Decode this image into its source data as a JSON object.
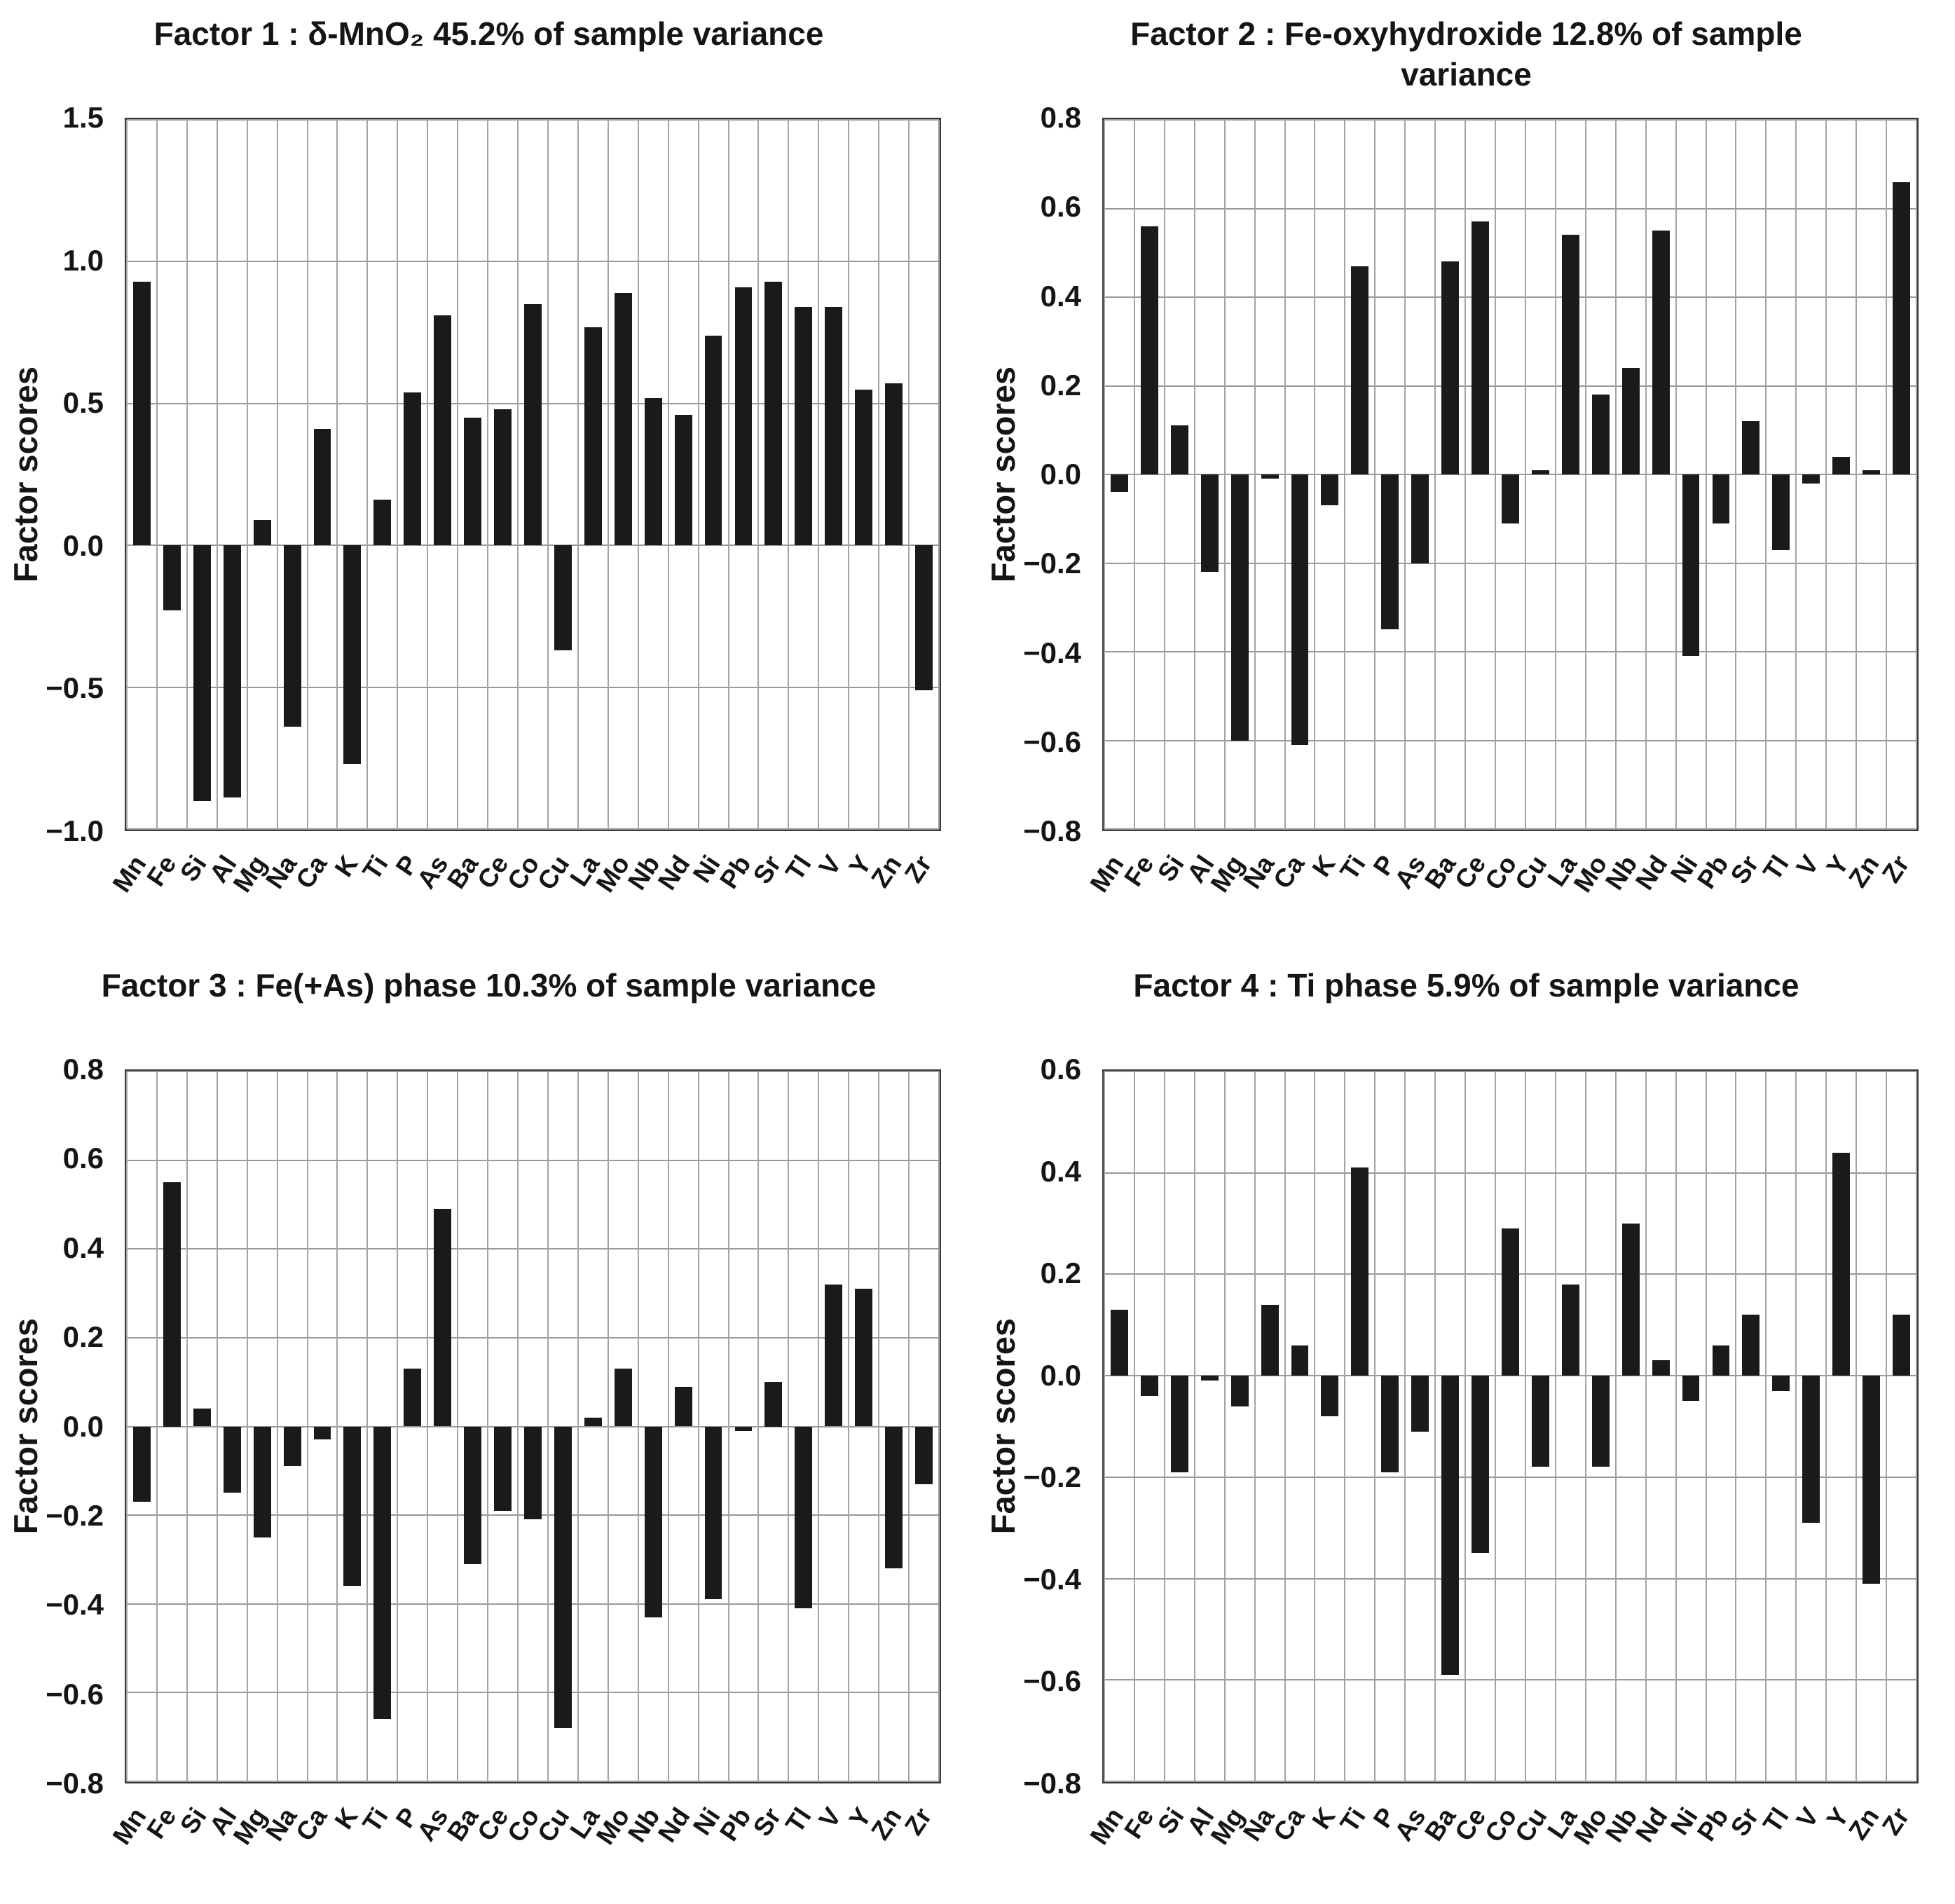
{
  "chart_data": [
    {
      "type": "bar",
      "title": "Factor 1 : δ-MnO₂ 45.2% of sample variance",
      "ylabel": "Factor scores",
      "xlabel": "",
      "legend": "none",
      "grid": true,
      "bar_color": "#1a1a1a",
      "ylim": [
        -1.0,
        1.5
      ],
      "ytick_step": 0.5,
      "categories": [
        "Mn",
        "Fe",
        "Si",
        "Al",
        "Mg",
        "Na",
        "Ca",
        "K",
        "Ti",
        "P",
        "As",
        "Ba",
        "Ce",
        "Co",
        "Cu",
        "La",
        "Mo",
        "Nb",
        "Nd",
        "Ni",
        "Pb",
        "Sr",
        "Tl",
        "V",
        "Y",
        "Zn",
        "Zr"
      ],
      "values": [
        0.93,
        -0.23,
        -0.9,
        -0.89,
        0.09,
        -0.64,
        0.41,
        -0.77,
        0.16,
        0.54,
        0.81,
        0.45,
        0.48,
        0.85,
        -0.37,
        0.77,
        0.89,
        0.52,
        0.46,
        0.74,
        0.91,
        0.93,
        0.84,
        0.84,
        0.55,
        0.57,
        -0.51
      ]
    },
    {
      "type": "bar",
      "title": "Factor 2 : Fe-oxyhydroxide 12.8% of sample variance",
      "ylabel": "Factor scores",
      "xlabel": "",
      "legend": "none",
      "grid": true,
      "bar_color": "#1a1a1a",
      "ylim": [
        -0.8,
        0.8
      ],
      "ytick_step": 0.2,
      "categories": [
        "Mn",
        "Fe",
        "Si",
        "Al",
        "Mg",
        "Na",
        "Ca",
        "K",
        "Ti",
        "P",
        "As",
        "Ba",
        "Ce",
        "Co",
        "Cu",
        "La",
        "Mo",
        "Nb",
        "Nd",
        "Ni",
        "Pb",
        "Sr",
        "Tl",
        "V",
        "Y",
        "Zn",
        "Zr"
      ],
      "values": [
        -0.04,
        0.56,
        0.11,
        -0.22,
        -0.6,
        -0.01,
        -0.61,
        -0.07,
        0.47,
        -0.35,
        -0.2,
        0.48,
        0.57,
        -0.11,
        0.01,
        0.54,
        0.18,
        0.24,
        0.55,
        -0.41,
        -0.11,
        0.12,
        -0.17,
        -0.02,
        0.04,
        0.01,
        0.66
      ]
    },
    {
      "type": "bar",
      "title": "Factor 3 : Fe(+As) phase 10.3% of sample variance",
      "ylabel": "Factor scores",
      "xlabel": "",
      "legend": "none",
      "grid": true,
      "bar_color": "#1a1a1a",
      "ylim": [
        -0.8,
        0.8
      ],
      "ytick_step": 0.2,
      "categories": [
        "Mn",
        "Fe",
        "Si",
        "Al",
        "Mg",
        "Na",
        "Ca",
        "K",
        "Ti",
        "P",
        "As",
        "Ba",
        "Ce",
        "Co",
        "Cu",
        "La",
        "Mo",
        "Nb",
        "Nd",
        "Ni",
        "Pb",
        "Sr",
        "Tl",
        "V",
        "Y",
        "Zn",
        "Zr"
      ],
      "values": [
        -0.17,
        0.55,
        0.04,
        -0.15,
        -0.25,
        -0.09,
        -0.03,
        -0.36,
        -0.66,
        0.13,
        0.49,
        -0.31,
        -0.19,
        -0.21,
        -0.68,
        0.02,
        0.13,
        -0.43,
        0.09,
        -0.39,
        -0.01,
        0.1,
        -0.41,
        0.32,
        0.31,
        -0.32,
        -0.13
      ]
    },
    {
      "type": "bar",
      "title": "Factor 4 : Ti phase 5.9% of sample variance",
      "ylabel": "Factor scores",
      "xlabel": "",
      "legend": "none",
      "grid": true,
      "bar_color": "#1a1a1a",
      "ylim": [
        -0.8,
        0.6
      ],
      "ytick_step": 0.2,
      "categories": [
        "Mn",
        "Fe",
        "Si",
        "Al",
        "Mg",
        "Na",
        "Ca",
        "K",
        "Ti",
        "P",
        "As",
        "Ba",
        "Ce",
        "Co",
        "Cu",
        "La",
        "Mo",
        "Nb",
        "Nd",
        "Ni",
        "Pb",
        "Sr",
        "Tl",
        "V",
        "Y",
        "Zn",
        "Zr"
      ],
      "values": [
        0.13,
        -0.04,
        -0.19,
        -0.01,
        -0.06,
        0.14,
        0.06,
        -0.08,
        0.41,
        -0.19,
        -0.11,
        -0.59,
        -0.35,
        0.29,
        -0.18,
        0.18,
        -0.18,
        0.3,
        0.03,
        -0.05,
        0.06,
        0.12,
        -0.03,
        -0.29,
        0.44,
        -0.41,
        0.12
      ]
    }
  ]
}
